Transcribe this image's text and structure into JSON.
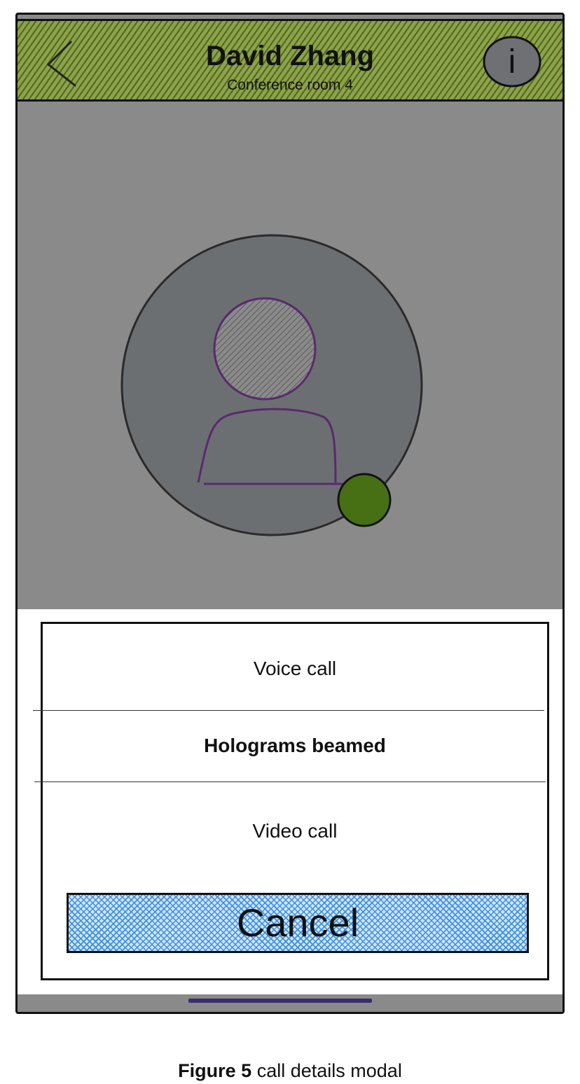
{
  "header": {
    "title": "David Zhang",
    "subtitle": "Conference room 4",
    "info_glyph": "i",
    "back_icon": "chevron-left-icon",
    "info_icon": "info-icon"
  },
  "avatar": {
    "icon": "user-avatar-icon",
    "status_color": "#476f14"
  },
  "modal": {
    "options": [
      {
        "label": "Voice call"
      },
      {
        "label": "Holograms beamed"
      },
      {
        "label": "Video call"
      }
    ],
    "cancel_label": "Cancel"
  },
  "caption": {
    "figure": "Figure 5",
    "text": "call details modal"
  },
  "colors": {
    "header_hatch": "#4e6a12",
    "cancel_hatch": "#3a8ee0",
    "overlay": "#8a8a8a",
    "home_indicator": "#3a2d6e"
  }
}
